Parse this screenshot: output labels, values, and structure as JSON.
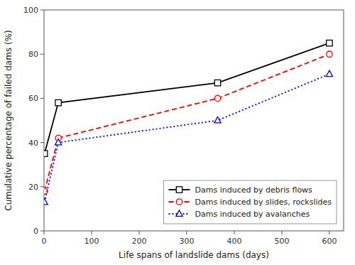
{
  "chart_data": {
    "type": "line",
    "x_label": "Life spans of landslide dams (days)",
    "y_label": "Cumulative percentage of failed dams (%)",
    "x": [
      1,
      30,
      365,
      600
    ],
    "series": [
      {
        "name": "Dams induced by debris flows",
        "color": "black",
        "marker": "square",
        "line_style": "solid",
        "values": [
          35,
          58,
          67,
          85
        ]
      },
      {
        "name": "Dams induced by slides, rockslides",
        "color": "red",
        "marker": "circle",
        "line_style": "dashed",
        "values": [
          18,
          42,
          60,
          80
        ]
      },
      {
        "name": "Dams induced by avalanches",
        "color": "blue",
        "marker": "triangle",
        "line_style": "dotted",
        "values": [
          13,
          40,
          50,
          71
        ]
      }
    ],
    "xlim": [
      0,
      630
    ],
    "ylim": [
      0,
      100
    ],
    "xticks": [
      0,
      100,
      200,
      300,
      400,
      500,
      600
    ],
    "yticks": [
      0,
      20,
      40,
      60,
      80,
      100
    ],
    "legend": "lower right",
    "grid": false
  }
}
